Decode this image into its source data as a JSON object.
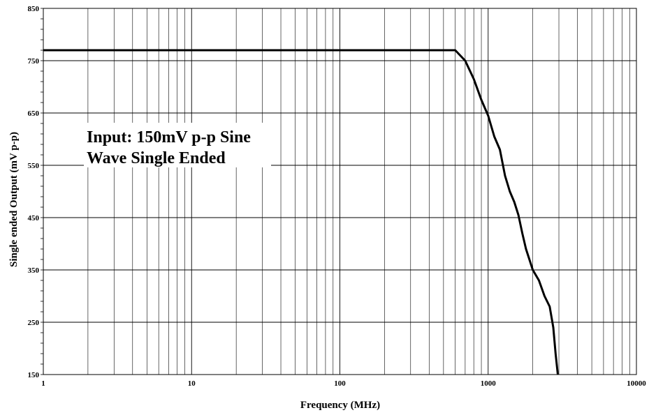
{
  "chart_data": {
    "type": "line",
    "title": "",
    "xlabel": "Frequency (MHz)",
    "ylabel": "Single ended Output (mV p-p)",
    "x_scale": "log",
    "xlim": [
      1,
      10000
    ],
    "ylim": [
      150,
      850
    ],
    "x_ticks": [
      1,
      10,
      100,
      1000,
      10000
    ],
    "x_tick_labels": [
      "1",
      "10",
      "100",
      "1000",
      "10000"
    ],
    "y_ticks": [
      150,
      250,
      350,
      450,
      550,
      650,
      750,
      850
    ],
    "y_tick_labels": [
      "150",
      "250",
      "350",
      "450",
      "550",
      "650",
      "750",
      "850"
    ],
    "grid": true,
    "legend": "none",
    "annotation_lines": [
      "Input: 150mV p-p Sine",
      "Wave Single Ended"
    ],
    "series": [
      {
        "color": "#000000",
        "x": [
          1,
          10,
          100,
          600,
          700,
          800,
          900,
          1000,
          1100,
          1200,
          1300,
          1400,
          1500,
          1600,
          1700,
          1800,
          2000,
          2200,
          2400,
          2600,
          2750,
          2850,
          2950
        ],
        "y": [
          770,
          770,
          770,
          770,
          750,
          715,
          675,
          645,
          605,
          580,
          530,
          500,
          480,
          455,
          420,
          390,
          350,
          330,
          300,
          280,
          240,
          190,
          150
        ]
      }
    ]
  }
}
